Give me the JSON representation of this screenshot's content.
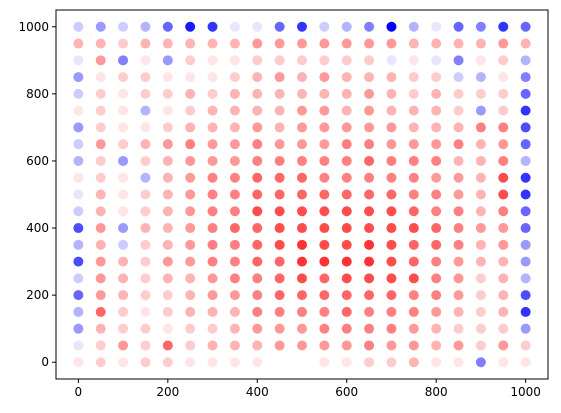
{
  "chart_data": {
    "type": "scatter",
    "title": "",
    "xlabel": "",
    "ylabel": "",
    "xlim": [
      -50,
      1050
    ],
    "ylim": [
      -50,
      1050
    ],
    "x_ticks": [
      0,
      200,
      400,
      600,
      800,
      1000
    ],
    "y_ticks": [
      0,
      200,
      400,
      600,
      800,
      1000
    ],
    "x_tick_labels": [
      "0",
      "200",
      "400",
      "600",
      "800",
      "1000"
    ],
    "y_tick_labels": [
      "0",
      "200",
      "400",
      "600",
      "800",
      "1000"
    ],
    "grid": false,
    "colormap": "bwr",
    "color_value_range": [
      -1,
      1
    ],
    "x": [
      0,
      50,
      100,
      150,
      200,
      250,
      300,
      350,
      400,
      450,
      500,
      550,
      600,
      650,
      700,
      750,
      800,
      850,
      900,
      950,
      1000
    ],
    "y": [
      0,
      50,
      100,
      150,
      200,
      250,
      300,
      350,
      400,
      450,
      500,
      550,
      600,
      650,
      700,
      750,
      800,
      850,
      900,
      950,
      1000
    ],
    "color_values": [
      [
        0.1,
        0.2,
        0.1,
        0.2,
        0.2,
        0.1,
        0.1,
        0.1,
        0.1,
        0.0,
        0.0,
        0.1,
        0.1,
        0.2,
        0.2,
        0.3,
        0.1,
        0.1,
        -0.5,
        0.1,
        0.1
      ],
      [
        -0.1,
        0.2,
        0.4,
        0.2,
        0.6,
        0.2,
        0.3,
        0.3,
        0.3,
        0.4,
        0.4,
        0.4,
        0.4,
        0.5,
        0.4,
        0.4,
        0.3,
        0.4,
        0.2,
        0.4,
        0.2
      ],
      [
        -0.4,
        0.3,
        0.2,
        0.2,
        0.1,
        0.2,
        0.2,
        0.3,
        0.4,
        0.4,
        0.4,
        0.5,
        0.5,
        0.5,
        0.5,
        0.4,
        0.3,
        0.2,
        0.2,
        0.2,
        -0.4
      ],
      [
        -0.3,
        0.6,
        0.2,
        0.1,
        0.2,
        0.3,
        0.3,
        0.3,
        0.5,
        0.5,
        0.5,
        0.5,
        0.6,
        0.5,
        0.5,
        0.5,
        0.4,
        0.3,
        0.2,
        0.3,
        -0.8
      ],
      [
        -0.6,
        0.4,
        0.3,
        0.2,
        0.2,
        0.3,
        0.4,
        0.4,
        0.5,
        0.6,
        0.6,
        0.6,
        0.6,
        0.6,
        0.6,
        0.5,
        0.5,
        0.4,
        0.2,
        0.3,
        -0.7
      ],
      [
        -0.2,
        0.4,
        0.3,
        0.2,
        0.3,
        0.3,
        0.4,
        0.5,
        0.5,
        0.6,
        0.7,
        0.6,
        0.7,
        0.7,
        0.7,
        0.7,
        0.5,
        0.4,
        0.2,
        0.3,
        -0.3
      ],
      [
        -0.7,
        0.4,
        0.3,
        0.2,
        0.4,
        0.4,
        0.5,
        0.5,
        0.6,
        0.6,
        0.8,
        0.8,
        0.8,
        0.8,
        0.7,
        0.6,
        0.5,
        0.4,
        0.3,
        0.3,
        -0.4
      ],
      [
        -0.3,
        0.3,
        -0.2,
        0.2,
        0.3,
        0.4,
        0.5,
        0.5,
        0.6,
        0.7,
        0.8,
        0.7,
        0.7,
        0.8,
        0.7,
        0.6,
        0.6,
        0.5,
        0.3,
        0.4,
        -0.4
      ],
      [
        -0.7,
        0.4,
        -0.4,
        0.3,
        0.3,
        0.4,
        0.5,
        0.6,
        0.6,
        0.7,
        0.7,
        0.7,
        0.7,
        0.7,
        0.7,
        0.7,
        0.6,
        0.5,
        0.4,
        0.4,
        -0.6
      ],
      [
        -0.2,
        0.3,
        0.1,
        0.2,
        0.3,
        0.4,
        0.5,
        0.5,
        0.7,
        0.7,
        0.7,
        0.7,
        0.7,
        0.7,
        0.7,
        0.6,
        0.5,
        0.5,
        0.3,
        0.5,
        -0.6
      ],
      [
        -0.1,
        0.3,
        0.1,
        0.2,
        0.3,
        0.4,
        0.5,
        0.5,
        0.6,
        0.6,
        0.6,
        0.6,
        0.6,
        0.6,
        0.6,
        0.5,
        0.5,
        0.4,
        0.3,
        0.7,
        -0.8
      ],
      [
        0.1,
        0.2,
        0.1,
        -0.3,
        0.3,
        0.4,
        0.5,
        0.5,
        0.6,
        0.6,
        0.6,
        0.5,
        0.5,
        0.5,
        0.5,
        0.5,
        0.4,
        0.4,
        0.3,
        0.7,
        -0.8
      ],
      [
        -0.3,
        0.2,
        -0.4,
        0.2,
        0.3,
        0.4,
        0.4,
        0.4,
        0.5,
        0.5,
        0.5,
        0.5,
        0.5,
        0.6,
        0.5,
        0.5,
        0.5,
        0.3,
        0.3,
        0.5,
        -0.3
      ],
      [
        -0.2,
        0.4,
        0.2,
        0.3,
        0.4,
        0.5,
        0.4,
        0.4,
        0.5,
        0.4,
        0.4,
        0.4,
        0.5,
        0.5,
        0.4,
        0.4,
        0.4,
        0.5,
        0.3,
        0.4,
        -0.6
      ],
      [
        -0.4,
        0.2,
        0.1,
        0.1,
        0.2,
        0.3,
        0.3,
        0.3,
        0.4,
        0.3,
        0.4,
        0.4,
        0.4,
        0.4,
        0.4,
        0.3,
        0.3,
        0.3,
        0.5,
        0.5,
        -0.7
      ],
      [
        0.1,
        0.2,
        0.1,
        -0.3,
        0.1,
        0.2,
        0.3,
        0.3,
        0.3,
        0.3,
        0.4,
        0.4,
        0.3,
        0.4,
        0.3,
        0.3,
        0.3,
        0.2,
        -0.4,
        0.2,
        -0.8
      ],
      [
        -0.2,
        0.2,
        0.1,
        0.2,
        0.2,
        0.3,
        0.2,
        0.3,
        0.3,
        0.3,
        0.3,
        0.3,
        0.3,
        0.4,
        0.3,
        0.2,
        0.3,
        0.2,
        0.2,
        0.2,
        -0.6
      ],
      [
        -0.4,
        0.1,
        0.2,
        0.2,
        0.1,
        0.1,
        0.1,
        0.2,
        0.3,
        0.4,
        0.3,
        0.4,
        0.3,
        0.3,
        0.3,
        0.2,
        0.2,
        -0.2,
        -0.3,
        0.1,
        -0.5
      ],
      [
        -0.1,
        0.4,
        -0.5,
        0.1,
        -0.4,
        0.2,
        0.1,
        0.1,
        0.2,
        0.2,
        0.2,
        0.2,
        0.2,
        0.2,
        -0.1,
        0.1,
        -0.1,
        -0.5,
        0.1,
        0.2,
        -0.3
      ],
      [
        0.3,
        0.3,
        0.2,
        0.3,
        0.3,
        0.3,
        0.3,
        0.3,
        0.4,
        0.4,
        0.4,
        0.4,
        0.4,
        0.4,
        0.4,
        0.3,
        0.3,
        0.3,
        0.3,
        0.4,
        0.3
      ],
      [
        -0.2,
        -0.4,
        -0.2,
        -0.3,
        -0.6,
        -0.9,
        -0.8,
        -0.1,
        -0.1,
        -0.6,
        -0.8,
        -0.2,
        -0.3,
        -0.5,
        -1.0,
        -0.3,
        -0.1,
        -0.6,
        -0.5,
        -0.8,
        -0.6
      ]
    ]
  }
}
